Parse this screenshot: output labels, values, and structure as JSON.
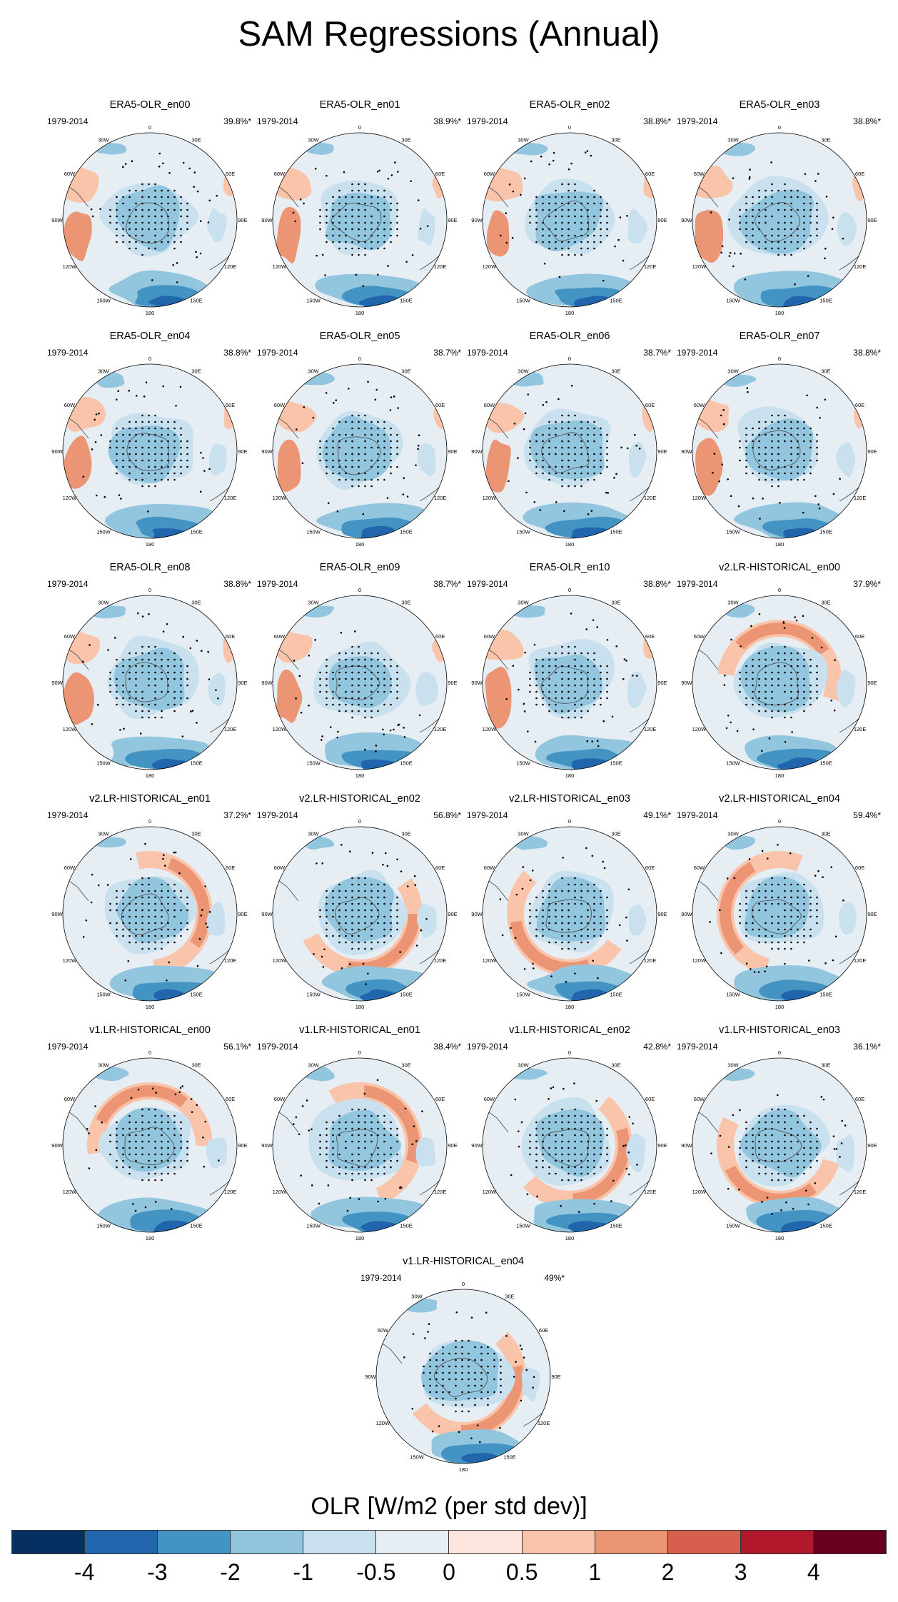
{
  "title": "SAM Regressions (Annual)",
  "period": "1979-2014",
  "longitude_labels": [
    "0",
    "30E",
    "60E",
    "90E",
    "120E",
    "150E",
    "180",
    "150W",
    "120W",
    "90W",
    "60W",
    "30W"
  ],
  "panels": [
    {
      "name": "ERA5-OLR_en00",
      "pct": "39.8%*"
    },
    {
      "name": "ERA5-OLR_en01",
      "pct": "38.9%*"
    },
    {
      "name": "ERA5-OLR_en02",
      "pct": "38.8%*"
    },
    {
      "name": "ERA5-OLR_en03",
      "pct": "38.8%*"
    },
    {
      "name": "ERA5-OLR_en04",
      "pct": "38.8%*"
    },
    {
      "name": "ERA5-OLR_en05",
      "pct": "38.7%*"
    },
    {
      "name": "ERA5-OLR_en06",
      "pct": "38.7%*"
    },
    {
      "name": "ERA5-OLR_en07",
      "pct": "38.8%*"
    },
    {
      "name": "ERA5-OLR_en08",
      "pct": "38.8%*"
    },
    {
      "name": "ERA5-OLR_en09",
      "pct": "38.7%*"
    },
    {
      "name": "ERA5-OLR_en10",
      "pct": "38.8%*"
    },
    {
      "name": "v2.LR-HISTORICAL_en00",
      "pct": "37.9%*"
    },
    {
      "name": "v2.LR-HISTORICAL_en01",
      "pct": "37.2%*"
    },
    {
      "name": "v2.LR-HISTORICAL_en02",
      "pct": "56.8%*"
    },
    {
      "name": "v2.LR-HISTORICAL_en03",
      "pct": "49.1%*"
    },
    {
      "name": "v2.LR-HISTORICAL_en04",
      "pct": "59.4%*"
    },
    {
      "name": "v1.LR-HISTORICAL_en00",
      "pct": "56.1%*"
    },
    {
      "name": "v1.LR-HISTORICAL_en01",
      "pct": "38.4%*"
    },
    {
      "name": "v1.LR-HISTORICAL_en02",
      "pct": "42.8%*"
    },
    {
      "name": "v1.LR-HISTORICAL_en03",
      "pct": "36.1%*"
    },
    {
      "name": "v1.LR-HISTORICAL_en04",
      "pct": "49%*"
    }
  ],
  "colorbar": {
    "title": "OLR [W/m2 (per std dev)]",
    "colors": [
      "#053061",
      "#2166ac",
      "#4393c3",
      "#92c5de",
      "#c9e1ef",
      "#e6eef4",
      "#fbe5dc",
      "#f9c4a9",
      "#ec9574",
      "#d6604d",
      "#b2182b",
      "#67001f"
    ],
    "tick_labels": [
      "-4",
      "-3",
      "-2",
      "-1",
      "-0.5",
      "0",
      "0.5",
      "1",
      "2",
      "3",
      "4"
    ]
  },
  "palette": {
    "ocean_background": "#e6eef4",
    "warm_light": "#fbe5dc",
    "warm_mid": "#f9c4a9",
    "warm_strong": "#ec9574",
    "cool_light": "#c9e1ef",
    "cool_mid": "#92c5de",
    "cool_strong": "#4393c3",
    "cool_deep": "#2166ac",
    "coastline": "#555555",
    "stipple": "#000000"
  }
}
